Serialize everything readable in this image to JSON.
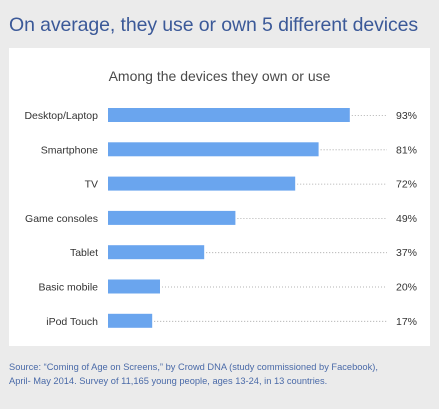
{
  "headline": "On average, they use or own 5 different devices",
  "source": {
    "line1": "Source: “Coming of Age on Screens,” by Crowd DNA (study commissioned by Facebook),",
    "line2": "April- May 2014. Survey of 11,165 young people, ages 13-24, in 13 countries."
  },
  "colors": {
    "bar": "#6aa5ee",
    "headline": "#3b5998",
    "background": "#ebebeb",
    "panel": "#ffffff"
  },
  "chart_data": {
    "type": "bar",
    "orientation": "horizontal",
    "title": "Among the devices they own or use",
    "categories": [
      "Desktop/Laptop",
      "Smartphone",
      "TV",
      "Game consoles",
      "Tablet",
      "Basic mobile",
      "iPod Touch"
    ],
    "values": [
      93,
      81,
      72,
      49,
      37,
      20,
      17
    ],
    "value_labels": [
      "93%",
      "81%",
      "72%",
      "49%",
      "37%",
      "20%",
      "17%"
    ],
    "unit": "%",
    "xlim": [
      0,
      100
    ],
    "grid": false,
    "legend": "none"
  }
}
